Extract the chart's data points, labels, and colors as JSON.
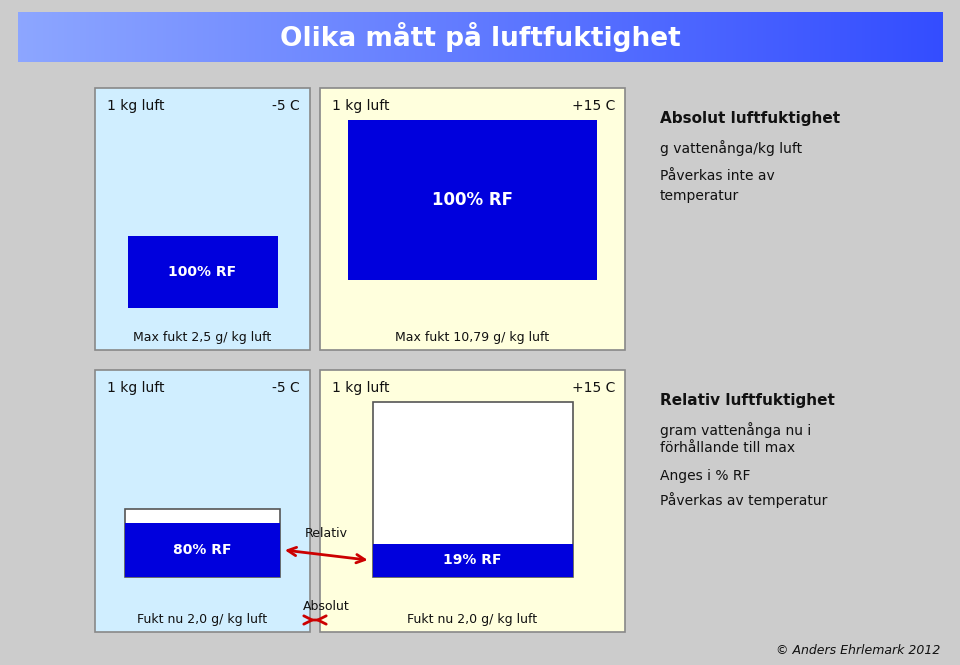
{
  "title": "Olika mått på luftfuktighet",
  "bg_color": "#cccccc",
  "box1_bg": "#d0eeff",
  "box2_bg": "#ffffdd",
  "blue_rect": "#0000dd",
  "dark_text": "#111111",
  "arrow_color": "#cc0000",
  "abs_text1": "Absolut luftfuktighet",
  "abs_text2": "g vattenånga/kg luft",
  "abs_text3a": "Påverkas inte av",
  "abs_text3b": "temperatur",
  "rel_text1": "Relativ luftfuktighet",
  "rel_text2a": "gram vattenånga nu i",
  "rel_text2b": "förhållande till max",
  "rel_text3": "Anges i % RF",
  "rel_text4": "Påverkas av temperatur",
  "copy": "© Anders Ehrlemark 2012",
  "box1_label1": "1 kg luft",
  "box1_label2": "-5 C",
  "box1_blue_label": "100% RF",
  "box1_bot": "Max fukt 2,5 g/ kg luft",
  "box2_label1": "1 kg luft",
  "box2_label2": "+15 C",
  "box2_blue_label": "100% RF",
  "box2_bot": "Max fukt 10,79 g/ kg luft",
  "box3_label1": "1 kg luft",
  "box3_label2": "-5 C",
  "box3_blue_label": "80% RF",
  "box3_bot": "Fukt nu 2,0 g/ kg luft",
  "box4_label1": "1 kg luft",
  "box4_label2": "+15 C",
  "box4_blue_label": "19% RF",
  "box4_bot": "Fukt nu 2,0 g/ kg luft",
  "arr_relativ": "Relativ",
  "arr_absolut": "Absolut"
}
